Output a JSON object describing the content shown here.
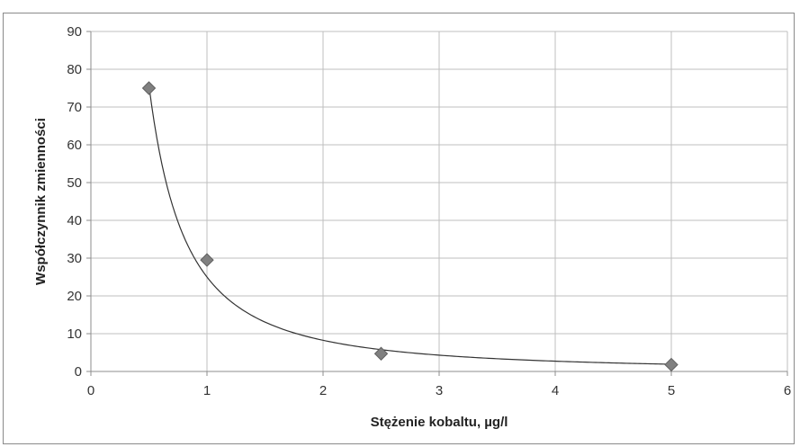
{
  "chart_data": {
    "type": "scatter",
    "xlabel": "Stężenie kobaltu, µg/l",
    "ylabel": "Współczynnik zmienności",
    "xlim": [
      0,
      6
    ],
    "ylim": [
      0,
      90
    ],
    "x_ticks": [
      "0",
      "1",
      "2",
      "3",
      "4",
      "5",
      "6"
    ],
    "y_ticks": [
      "0",
      "10",
      "20",
      "30",
      "40",
      "50",
      "60",
      "70",
      "80",
      "90"
    ],
    "grid": true,
    "legend": "none",
    "series": [
      {
        "marker": "diamond",
        "points": [
          {
            "x": 0.5,
            "y": 75
          },
          {
            "x": 1.0,
            "y": 29.5
          },
          {
            "x": 2.5,
            "y": 4.7
          },
          {
            "x": 5.0,
            "y": 1.8
          }
        ]
      }
    ],
    "trendline": {
      "type": "power",
      "coefficient": 25,
      "exponent": -1.6,
      "x_range": [
        0.5,
        5.0
      ]
    },
    "colors": {
      "marker": "#808080",
      "marker_edge": "#606060",
      "trendline": "#333333",
      "grid": "#bfbfbf",
      "axis": "#8c8c8c"
    }
  }
}
